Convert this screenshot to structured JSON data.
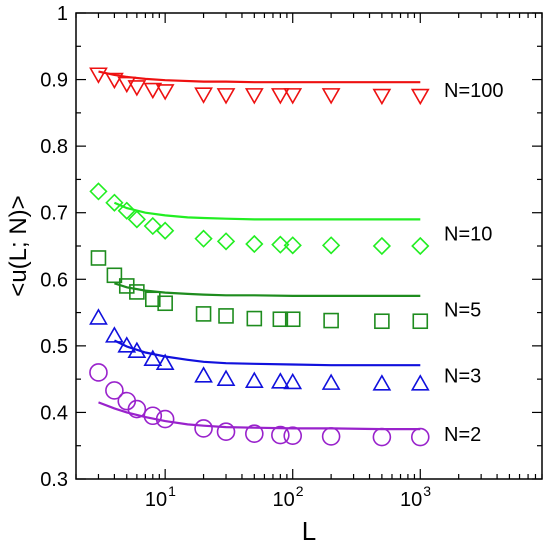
{
  "chart_data": {
    "type": "scatter",
    "title": "",
    "xlabel": "L",
    "ylabel": "<u(L; N)>",
    "xscale": "log",
    "xlim": [
      2,
      9000
    ],
    "ylim": [
      0.3,
      1.0
    ],
    "xticks": [
      {
        "value": 10,
        "base": "10",
        "exp": "1"
      },
      {
        "value": 100,
        "base": "10",
        "exp": "2"
      },
      {
        "value": 1000,
        "base": "10",
        "exp": "3"
      }
    ],
    "yticks": [
      {
        "value": 0.3,
        "label": "0.3"
      },
      {
        "value": 0.4,
        "label": "0.4"
      },
      {
        "value": 0.5,
        "label": "0.5"
      },
      {
        "value": 0.6,
        "label": "0.6"
      },
      {
        "value": 0.7,
        "label": "0.7"
      },
      {
        "value": 0.8,
        "label": "0.8"
      },
      {
        "value": 0.9,
        "label": "0.9"
      },
      {
        "value": 1.0,
        "label": "1"
      }
    ],
    "grid": false,
    "legend": "none",
    "series": [
      {
        "name": "N=100",
        "color": "#ee1111",
        "marker": "triangle-down",
        "points": {
          "x": [
            3,
            4,
            5,
            6,
            8,
            10,
            20,
            30,
            50,
            80,
            100,
            200,
            500,
            1000
          ],
          "y": [
            0.908,
            0.9,
            0.894,
            0.889,
            0.885,
            0.883,
            0.878,
            0.877,
            0.877,
            0.877,
            0.877,
            0.877,
            0.876,
            0.876
          ]
        },
        "curve": {
          "x": [
            3,
            4,
            5,
            7,
            10,
            20,
            30,
            50,
            100,
            200,
            500,
            1000
          ],
          "y": [
            0.912,
            0.907,
            0.904,
            0.901,
            0.899,
            0.897,
            0.897,
            0.896,
            0.896,
            0.896,
            0.896,
            0.896
          ]
        }
      },
      {
        "name": "N=10",
        "color": "#22ee22",
        "marker": "diamond",
        "points": {
          "x": [
            3,
            4,
            5,
            6,
            8,
            10,
            20,
            30,
            50,
            80,
            100,
            200,
            500,
            1000
          ],
          "y": [
            0.732,
            0.715,
            0.703,
            0.69,
            0.68,
            0.673,
            0.661,
            0.657,
            0.653,
            0.652,
            0.651,
            0.651,
            0.65,
            0.65
          ]
        },
        "curve": {
          "x": [
            4,
            5,
            7,
            10,
            15,
            20,
            30,
            50,
            100,
            200,
            500,
            1000
          ],
          "y": [
            0.715,
            0.707,
            0.7,
            0.696,
            0.693,
            0.692,
            0.691,
            0.69,
            0.69,
            0.69,
            0.69,
            0.69
          ]
        }
      },
      {
        "name": "N=5",
        "color": "#1e8c1e",
        "marker": "square",
        "points": {
          "x": [
            3,
            4,
            5,
            6,
            8,
            10,
            20,
            30,
            50,
            80,
            100,
            200,
            500,
            1000
          ],
          "y": [
            0.632,
            0.606,
            0.59,
            0.581,
            0.57,
            0.564,
            0.548,
            0.545,
            0.541,
            0.54,
            0.54,
            0.538,
            0.537,
            0.537
          ]
        },
        "curve": {
          "x": [
            4,
            5,
            7,
            10,
            15,
            20,
            30,
            50,
            100,
            200,
            500,
            1000
          ],
          "y": [
            0.594,
            0.588,
            0.583,
            0.58,
            0.578,
            0.577,
            0.576,
            0.576,
            0.575,
            0.575,
            0.575,
            0.575
          ]
        }
      },
      {
        "name": "N=3",
        "color": "#1111dd",
        "marker": "triangle-up",
        "points": {
          "x": [
            3,
            4,
            5,
            6,
            8,
            10,
            20,
            30,
            50,
            80,
            100,
            200,
            500,
            1000
          ],
          "y": [
            0.542,
            0.515,
            0.5,
            0.492,
            0.48,
            0.474,
            0.455,
            0.45,
            0.447,
            0.446,
            0.445,
            0.444,
            0.443,
            0.443
          ]
        },
        "curve": {
          "x": [
            4,
            5,
            7,
            10,
            15,
            20,
            30,
            50,
            100,
            200,
            500,
            1000
          ],
          "y": [
            0.508,
            0.499,
            0.49,
            0.484,
            0.479,
            0.476,
            0.474,
            0.473,
            0.472,
            0.471,
            0.471,
            0.471
          ]
        }
      },
      {
        "name": "N=2",
        "color": "#9922cc",
        "marker": "circle",
        "points": {
          "x": [
            3,
            4,
            5,
            6,
            8,
            10,
            20,
            30,
            50,
            80,
            100,
            200,
            500,
            1000
          ],
          "y": [
            0.46,
            0.433,
            0.417,
            0.405,
            0.395,
            0.39,
            0.376,
            0.371,
            0.368,
            0.366,
            0.365,
            0.364,
            0.363,
            0.363
          ]
        },
        "curve": {
          "x": [
            3,
            4,
            5,
            7,
            10,
            15,
            20,
            30,
            50,
            100,
            200,
            500,
            1000
          ],
          "y": [
            0.415,
            0.406,
            0.4,
            0.393,
            0.387,
            0.382,
            0.38,
            0.378,
            0.377,
            0.376,
            0.376,
            0.375,
            0.375
          ]
        }
      }
    ]
  }
}
